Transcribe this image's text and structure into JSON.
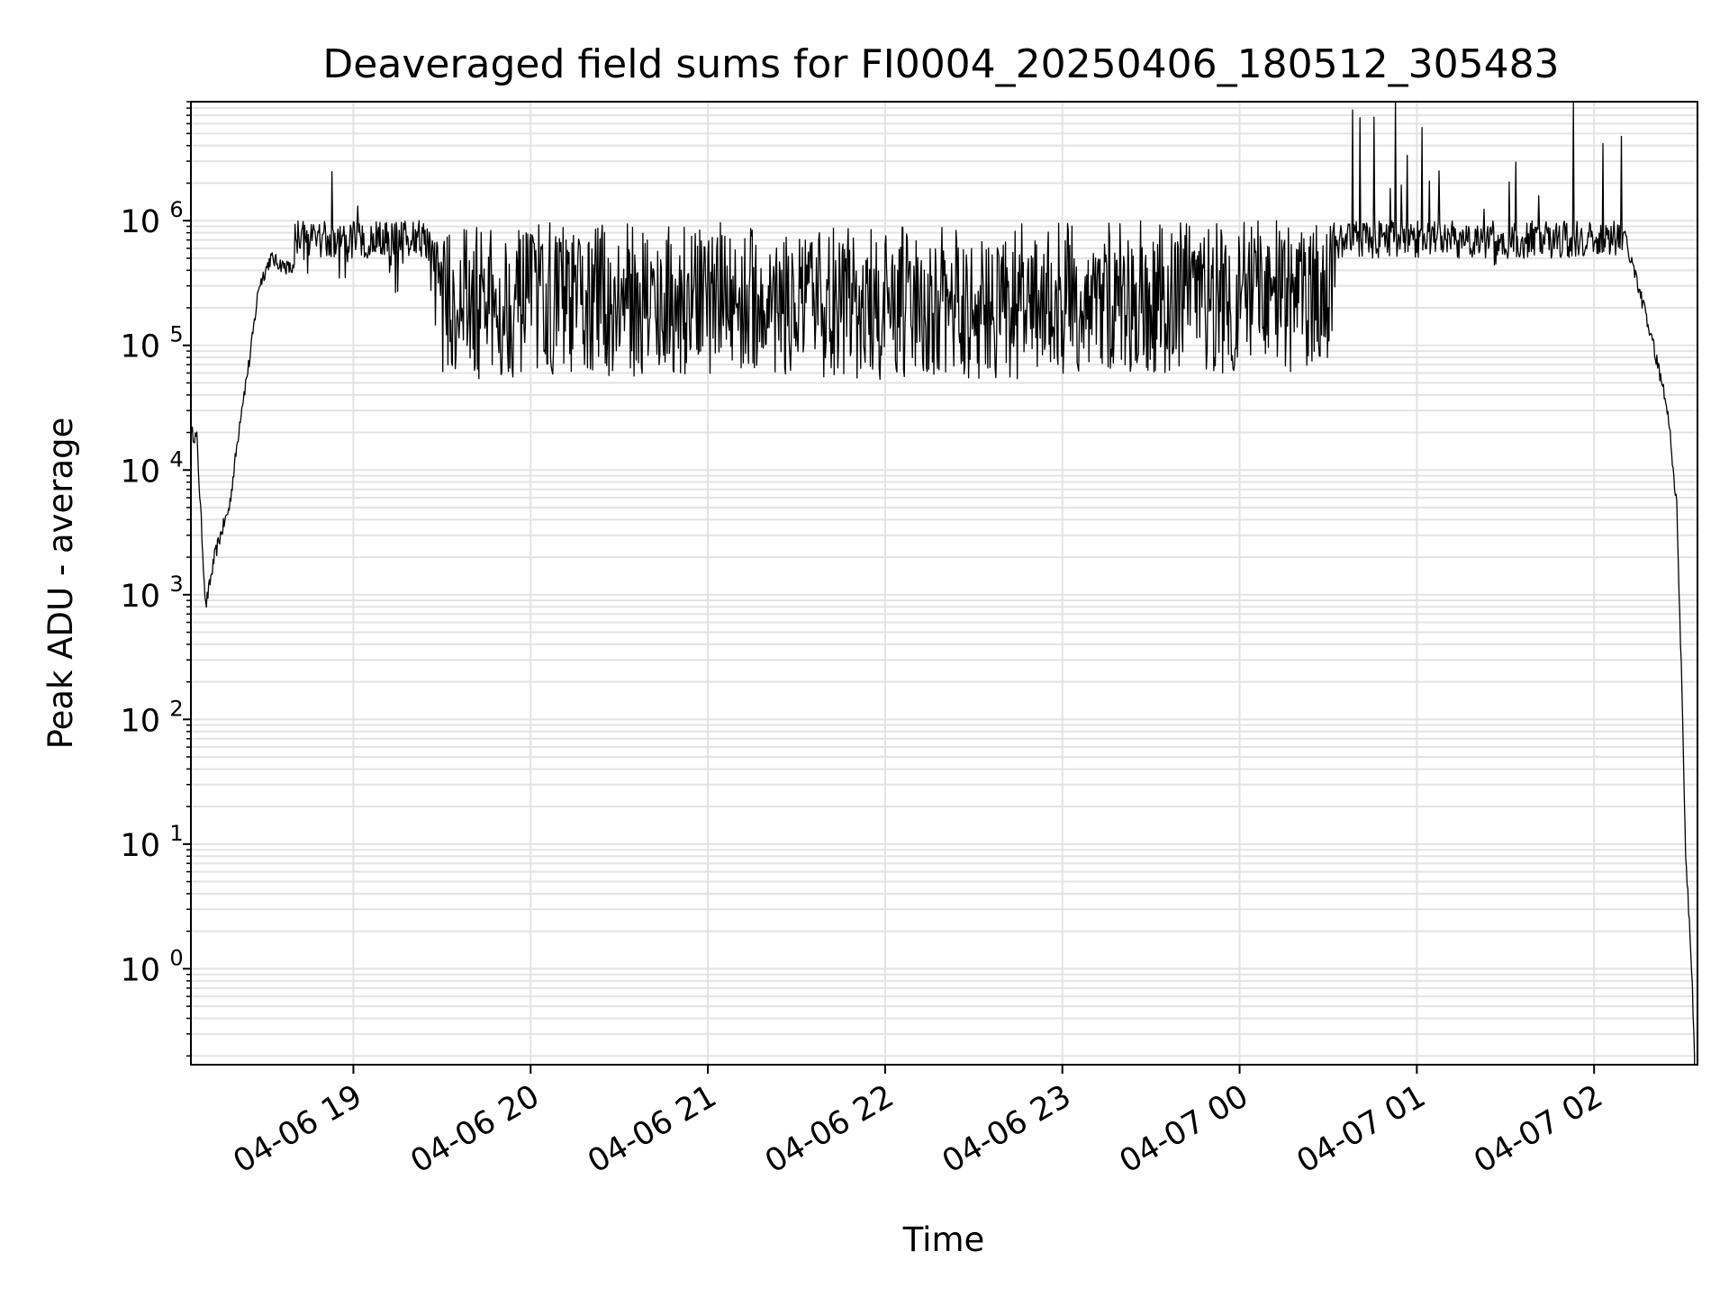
{
  "chart_data": {
    "type": "line",
    "title": "Deaveraged field sums for FI0004_20250406_180512_305483",
    "xlabel": "Time",
    "ylabel": "Peak ADU - average",
    "x_ticks": [
      "04-06 19",
      "04-06 20",
      "04-06 21",
      "04-06 22",
      "04-06 23",
      "04-07 00",
      "04-07 01",
      "04-07 02"
    ],
    "y_ticks": [
      {
        "base": "10",
        "exp": "0",
        "value": 1
      },
      {
        "base": "10",
        "exp": "1",
        "value": 10
      },
      {
        "base": "10",
        "exp": "2",
        "value": 100
      },
      {
        "base": "10",
        "exp": "3",
        "value": 1000
      },
      {
        "base": "10",
        "exp": "4",
        "value": 10000
      },
      {
        "base": "10",
        "exp": "5",
        "value": 100000
      },
      {
        "base": "10",
        "exp": "6",
        "value": 1000000
      }
    ],
    "y_scale": "log",
    "xlim": [
      "2025-04-06 18:05",
      "2025-04-07 02:35"
    ],
    "ylim": [
      0.17,
      9000000
    ],
    "grid": true,
    "line_color": "#000000",
    "grid_color": "#e3e3e3",
    "series": [
      {
        "x": [
          "2025-04-06 18:05",
          "2025-04-06 18:07",
          "2025-04-06 18:10",
          "2025-04-06 18:13",
          "2025-04-06 18:15",
          "2025-04-06 18:18",
          "2025-04-06 18:20",
          "2025-04-06 18:22",
          "2025-04-06 18:25",
          "2025-04-06 18:28",
          "2025-04-06 18:32",
          "2025-04-06 18:35",
          "2025-04-06 18:40",
          "2025-04-06 18:45",
          "2025-04-06 18:50",
          "2025-04-06 18:55",
          "2025-04-06 19:00",
          "2025-04-06 19:05",
          "2025-04-06 19:10",
          "2025-04-06 19:15",
          "2025-04-06 19:20",
          "2025-04-06 19:25",
          "2025-04-06 19:30",
          "2025-04-06 19:45",
          "2025-04-06 20:00",
          "2025-04-06 20:30",
          "2025-04-06 21:00",
          "2025-04-06 21:30",
          "2025-04-06 22:00",
          "2025-04-06 22:30",
          "2025-04-06 23:00",
          "2025-04-06 23:30",
          "2025-04-07 00:00",
          "2025-04-07 00:30",
          "2025-04-07 00:35",
          "2025-04-07 00:45",
          "2025-04-07 00:55",
          "2025-04-07 01:05",
          "2025-04-07 01:15",
          "2025-04-07 01:30",
          "2025-04-07 01:45",
          "2025-04-07 02:00",
          "2025-04-07 02:05",
          "2025-04-07 02:10",
          "2025-04-07 02:15",
          "2025-04-07 02:20",
          "2025-04-07 02:25",
          "2025-04-07 02:28",
          "2025-04-07 02:30",
          "2025-04-07 02:31",
          "2025-04-07 02:32",
          "2025-04-07 02:33",
          "2025-04-07 02:34"
        ],
        "values": [
          20000,
          18000,
          800,
          2000,
          3000,
          5000,
          12000,
          30000,
          80000,
          300000,
          500000,
          450000,
          400000,
          350000,
          1000000,
          200000,
          500000,
          400000,
          300000,
          200000,
          2000000,
          400000,
          60000,
          50000,
          60000,
          55000,
          60000,
          55000,
          50000,
          52000,
          55000,
          60000,
          60000,
          60000,
          1000000,
          1500000,
          800000,
          600000,
          500000,
          400000,
          600000,
          500000,
          1500000,
          800000,
          300000,
          100000,
          30000,
          5000,
          100,
          8,
          3,
          1,
          0.2
        ]
      }
    ]
  }
}
